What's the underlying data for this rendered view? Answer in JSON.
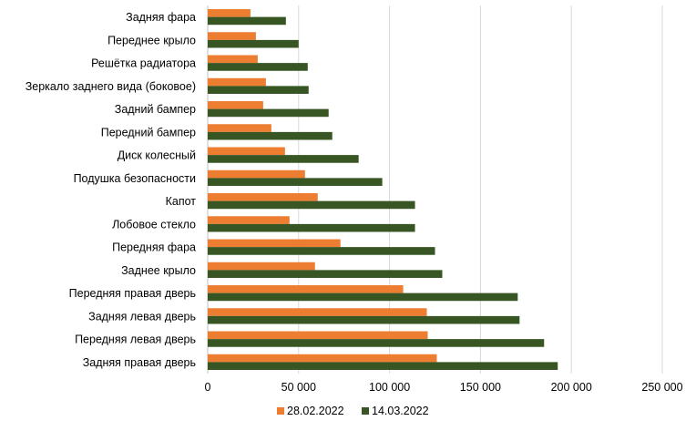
{
  "chart_data": {
    "type": "bar",
    "orientation": "horizontal",
    "categories": [
      "Задняя фара",
      "Переднее крыло",
      "Решётка радиатора",
      "Зеркало заднего вида (боковое)",
      "Задний бампер",
      "Передний бампер",
      "Диск колесный",
      "Подушка безопасности",
      "Капот",
      "Лобовое стекло",
      "Передняя фара",
      "Заднее крыло",
      "Передняя правая дверь",
      "Задняя левая дверь",
      "Передняя левая дверь",
      "Задняя правая дверь"
    ],
    "series": [
      {
        "name": "28.02.2022",
        "color": "#ED7D31",
        "values": [
          23500,
          26500,
          27500,
          32000,
          30500,
          35000,
          42500,
          53500,
          60500,
          45000,
          73000,
          59000,
          107500,
          120500,
          121000,
          126000
        ]
      },
      {
        "name": "14.03.2022",
        "color": "#375623",
        "values": [
          43000,
          50000,
          55000,
          55500,
          66500,
          68500,
          83000,
          96000,
          114000,
          114000,
          125000,
          129000,
          170500,
          171500,
          185000,
          192500
        ]
      }
    ],
    "xlim": [
      0,
      250000
    ],
    "xticks": [
      "0",
      "50 000",
      "100 000",
      "150 000",
      "200 000",
      "250 000"
    ],
    "xtick_values": [
      0,
      50000,
      100000,
      150000,
      200000,
      250000
    ],
    "grid": true,
    "grid_color": "#D9D9D9",
    "legend_position": "bottom",
    "title": "",
    "xlabel": "",
    "ylabel": ""
  }
}
